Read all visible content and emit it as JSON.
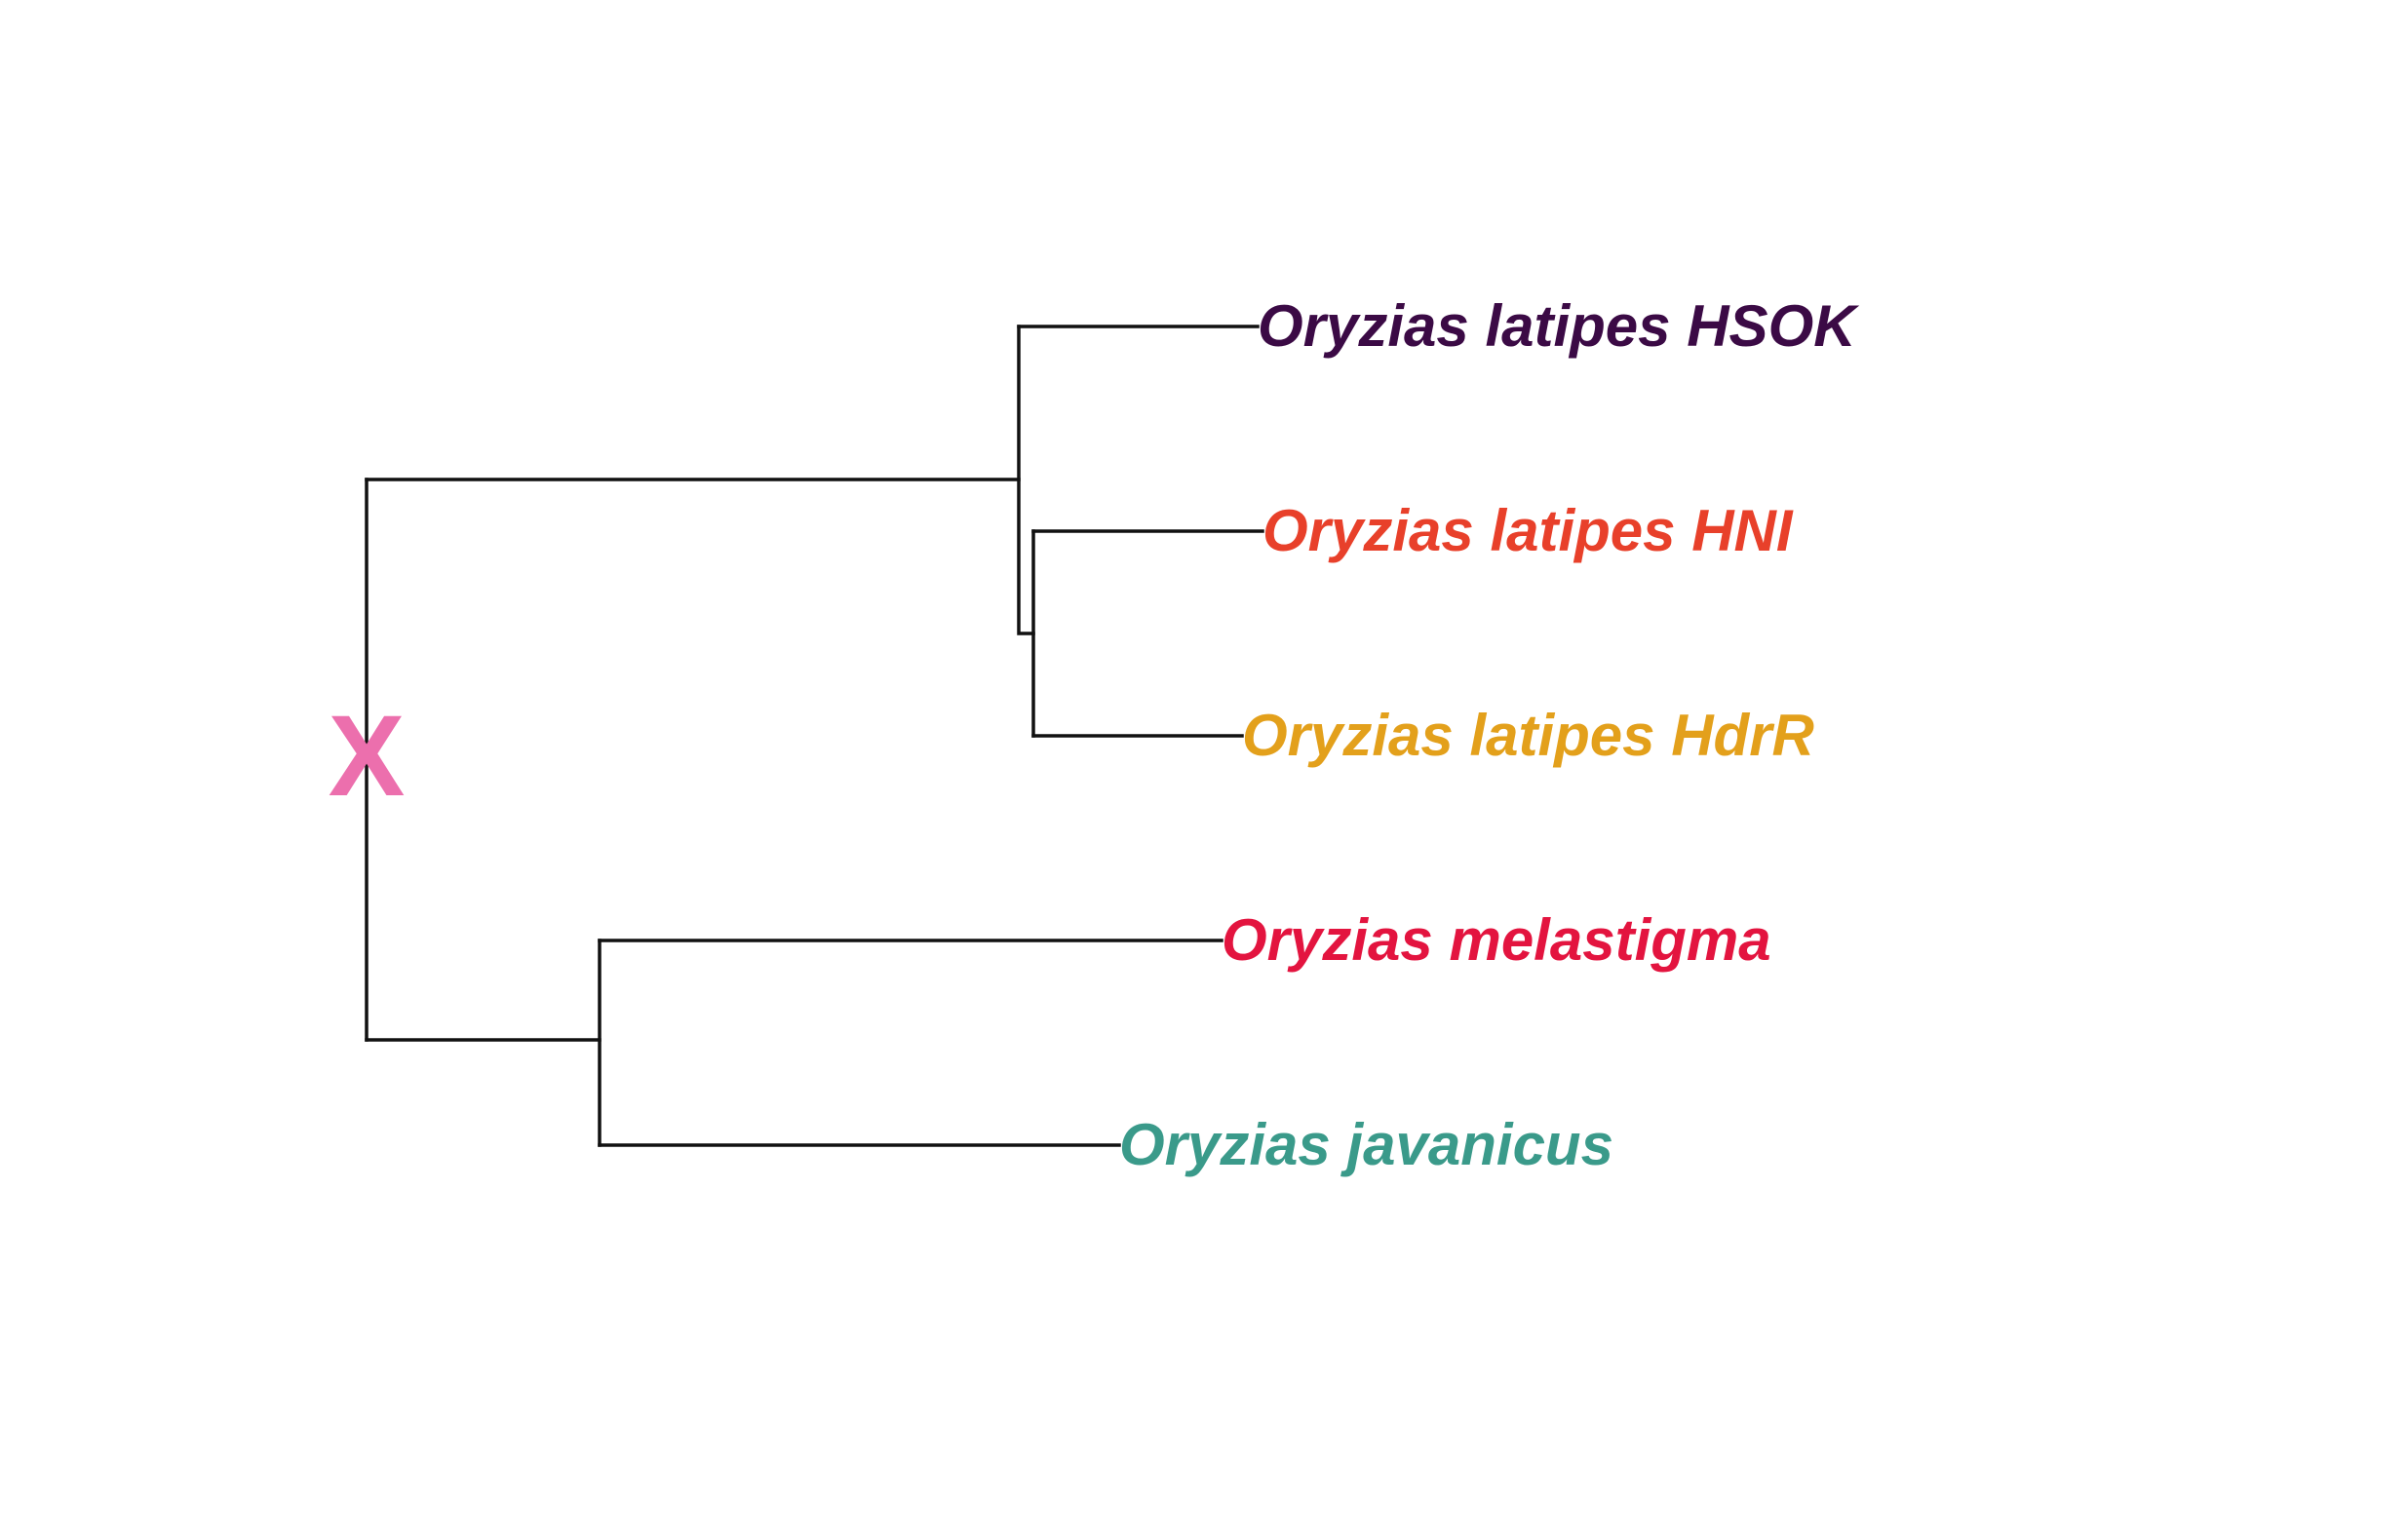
{
  "tree": {
    "root_marker": {
      "glyph": "X",
      "color": "#ec6fad"
    },
    "taxa": [
      {
        "id": "hsok",
        "label": "Oryzias latipes HSOK",
        "color": "#3b0a45"
      },
      {
        "id": "hni",
        "label": "Oryzias latipes HNI",
        "color": "#e8402a"
      },
      {
        "id": "hdrr",
        "label": "Oryzias latipes HdrR",
        "color": "#e3a01b"
      },
      {
        "id": "melastigma",
        "label": "Oryzias melastigma",
        "color": "#e3143f"
      },
      {
        "id": "javanicus",
        "label": "Oryzias javanicus",
        "color": "#3a9a8a"
      }
    ],
    "topology": "((HSOK,(HNI,HdrR)),(melastigma,javanicus))",
    "branch_color": "#111111"
  }
}
